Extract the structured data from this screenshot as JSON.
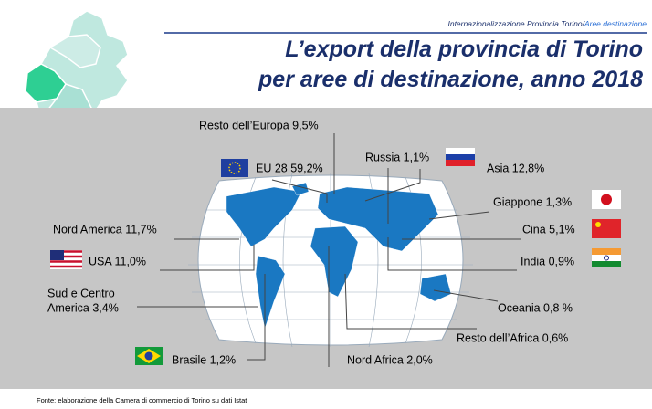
{
  "header": {
    "breadcrumb": "Internazionalizzazione Provincia Torino/",
    "breadcrumb_link": "Aree destinazione",
    "title_line1": "L’export della provincia di Torino",
    "title_line2": "per aree di destinazione, anno 2018"
  },
  "labels": {
    "resto_europa": "Resto dell’Europa 9,5%",
    "eu28": "EU 28 59,2%",
    "russia": "Russia 1,1%",
    "asia": "Asia 12,8%",
    "giappone": "Giappone 1,3%",
    "cina": "Cina 5,1%",
    "india": "India 0,9%",
    "oceania": "Oceania 0,8 %",
    "resto_africa": "Resto dell’Africa 0,6%",
    "nord_africa": "Nord Africa 2,0%",
    "brasile": "Brasile 1,2%",
    "sud_centro_america_line1": "Sud e Centro",
    "sud_centro_america_line2": "America  3,4%",
    "usa": "USA 11,0%",
    "nord_america": "Nord America 11,7%"
  },
  "footer": {
    "source": "Fonte: elaborazione della Camera di commercio di Torino su dati Istat"
  }
}
